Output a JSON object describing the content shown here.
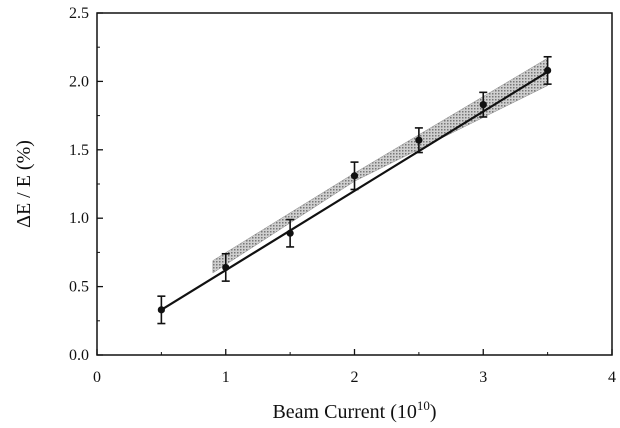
{
  "chart_data": {
    "type": "scatter",
    "title": "",
    "xlabel": "Beam Current (10",
    "xlabel_sup": "10",
    "xlabel_close": ")",
    "ylabel": "ΔE / E (%)",
    "xlim": [
      0,
      4
    ],
    "ylim": [
      0.0,
      2.5
    ],
    "xticks": [
      "0",
      "1",
      "2",
      "3",
      "4"
    ],
    "xtick_values": [
      0,
      1,
      2,
      3,
      4
    ],
    "yticks": [
      "0.0",
      "0.5",
      "1.0",
      "1.5",
      "2.0",
      "2.5"
    ],
    "ytick_values": [
      0.0,
      0.5,
      1.0,
      1.5,
      2.0,
      2.5
    ],
    "grid": false,
    "series": [
      {
        "x": [
          0.5,
          1.0,
          1.5,
          2.0,
          2.5,
          3.0,
          3.5
        ],
        "y": [
          0.33,
          0.64,
          0.89,
          1.31,
          1.57,
          1.83,
          2.08
        ],
        "yerr": [
          0.1,
          0.1,
          0.1,
          0.1,
          0.09,
          0.09,
          0.1
        ]
      }
    ],
    "fit_line": {
      "x": [
        0.5,
        3.5
      ],
      "y": [
        0.33,
        2.07
      ]
    },
    "confidence_band": {
      "x": [
        0.9,
        2.0,
        3.5
      ],
      "lower": [
        0.6,
        1.27,
        1.97
      ],
      "upper": [
        0.69,
        1.33,
        2.17
      ]
    },
    "colors": {
      "ink": "#111111",
      "band": "#9a9a9a"
    }
  }
}
